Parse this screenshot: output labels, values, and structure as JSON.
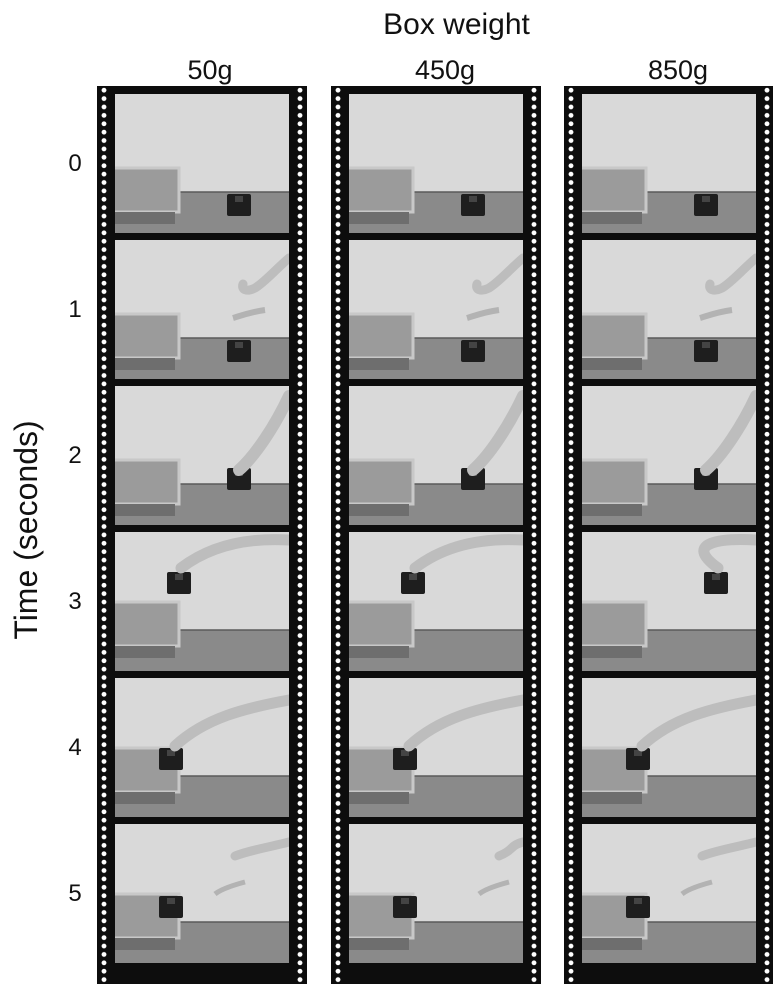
{
  "figure": {
    "header_title": "Box weight",
    "y_axis_title": "Time (seconds)",
    "columns": [
      {
        "label": "50g"
      },
      {
        "label": "450g"
      },
      {
        "label": "850g"
      }
    ],
    "rows": [
      {
        "label": "0"
      },
      {
        "label": "1"
      },
      {
        "label": "2"
      },
      {
        "label": "3"
      },
      {
        "label": "4"
      },
      {
        "label": "5"
      }
    ]
  }
}
